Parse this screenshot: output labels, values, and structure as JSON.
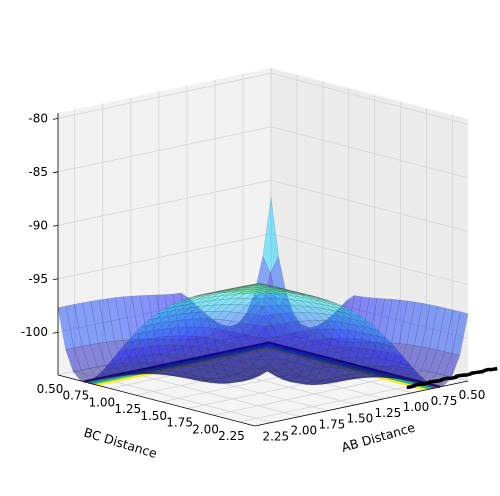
{
  "chart_data": {
    "type": "surface3d",
    "title": "",
    "xlabel": "AB Distance",
    "ylabel": "BC Distance",
    "zlabel": "",
    "x_ticks": [
      "0.50",
      "0.75",
      "1.00",
      "1.25",
      "1.50",
      "1.75",
      "2.00",
      "2.25"
    ],
    "y_ticks": [
      "0.50",
      "0.75",
      "1.00",
      "1.25",
      "1.50",
      "1.75",
      "2.00",
      "2.25"
    ],
    "z_ticks": [
      "-80",
      "-85",
      "-90",
      "-95",
      "-100"
    ],
    "x_range": [
      0.5,
      2.4
    ],
    "y_range": [
      0.5,
      2.4
    ],
    "z_range": [
      -104,
      -79.5
    ],
    "colormap": "jet",
    "surface_alpha": 0.45,
    "grid": true,
    "trajectory_color": "#000000",
    "contour_colors": [
      "#440154",
      "#31688e",
      "#35b779",
      "#fde725"
    ]
  }
}
